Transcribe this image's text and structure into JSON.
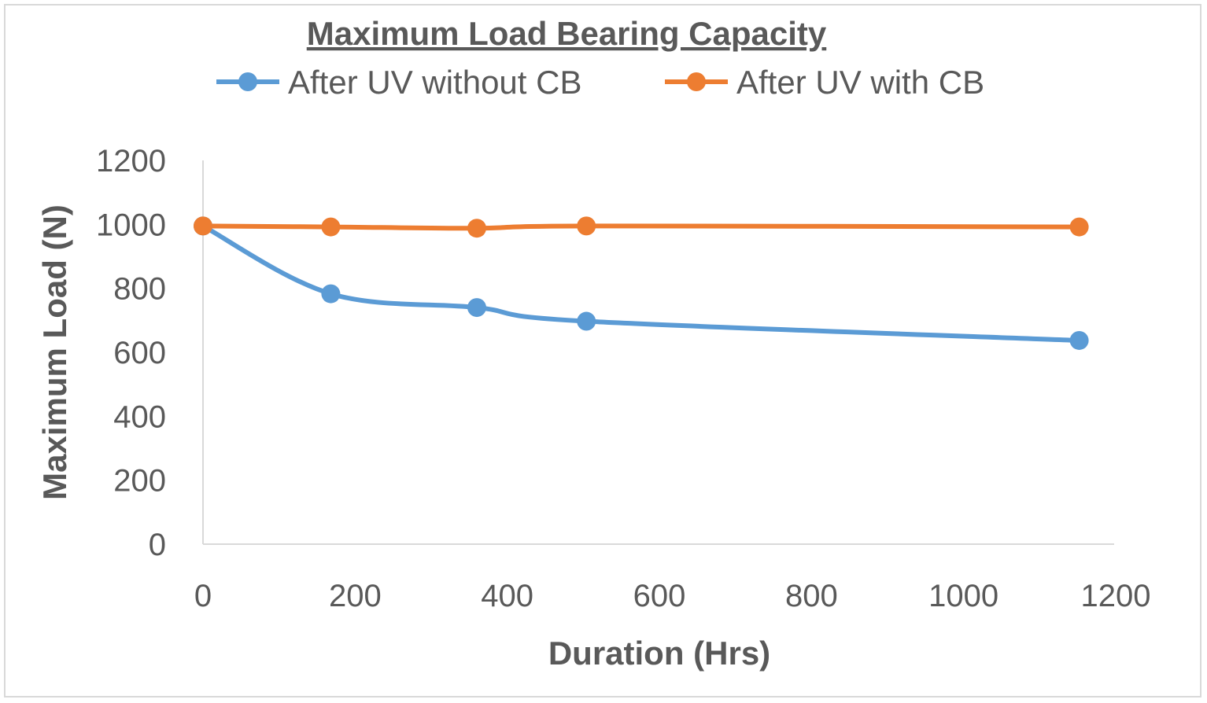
{
  "chart_data": {
    "type": "line",
    "title": "Maximum Load Bearing Capacity",
    "xlabel": "Duration (Hrs)",
    "ylabel": "Maximum Load (N)",
    "xlim": [
      0,
      1200
    ],
    "ylim": [
      0,
      1200
    ],
    "x_ticks": [
      0,
      200,
      400,
      600,
      800,
      1000,
      1200
    ],
    "y_ticks": [
      0,
      200,
      400,
      600,
      800,
      1000,
      1200
    ],
    "grid": false,
    "legend_position": "top",
    "series": [
      {
        "name": "After UV without CB",
        "color": "#5b9bd5",
        "smooth": true,
        "points": [
          [
            0,
            995
          ],
          [
            168,
            783
          ],
          [
            360,
            740
          ],
          [
            504,
            697
          ],
          [
            1152,
            637
          ]
        ]
      },
      {
        "name": "After UV with CB",
        "color": "#ed7d31",
        "smooth": true,
        "points": [
          [
            0,
            995
          ],
          [
            168,
            992
          ],
          [
            360,
            988
          ],
          [
            504,
            995
          ],
          [
            1152,
            992
          ]
        ]
      }
    ]
  }
}
